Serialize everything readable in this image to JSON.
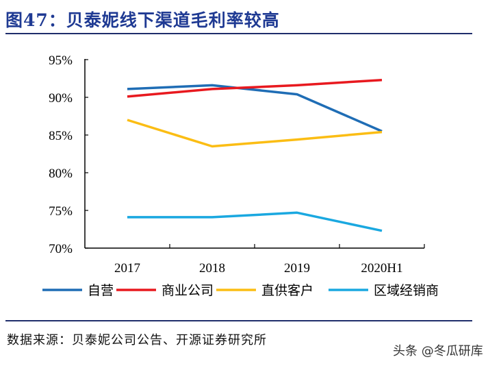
{
  "title": "图47：贝泰妮线下渠道毛利率较高",
  "source": "数据来源：贝泰妮公司公告、开源证券研究所",
  "watermark": "头条 @冬瓜研库",
  "chart_data": {
    "type": "line",
    "title": "",
    "xlabel": "",
    "ylabel": "",
    "categories": [
      "2017",
      "2018",
      "2019",
      "2020H1"
    ],
    "ylim": [
      70,
      95
    ],
    "yticks": [
      70,
      75,
      80,
      85,
      90,
      95
    ],
    "ytick_labels": [
      "70%",
      "75%",
      "80%",
      "85%",
      "90%",
      "95%"
    ],
    "grid": false,
    "legend": "bottom",
    "series": [
      {
        "name": "自营",
        "color": "#1f6db5",
        "values": [
          91.1,
          91.6,
          90.4,
          85.5
        ]
      },
      {
        "name": "商业公司",
        "color": "#e8191f",
        "values": [
          90.1,
          91.1,
          91.6,
          92.3
        ]
      },
      {
        "name": "直供客户",
        "color": "#fbbd14",
        "values": [
          87.0,
          83.5,
          84.4,
          85.4
        ]
      },
      {
        "name": "区域经销商",
        "color": "#1aa8e0",
        "values": [
          74.1,
          74.1,
          74.7,
          72.3
        ]
      }
    ]
  }
}
